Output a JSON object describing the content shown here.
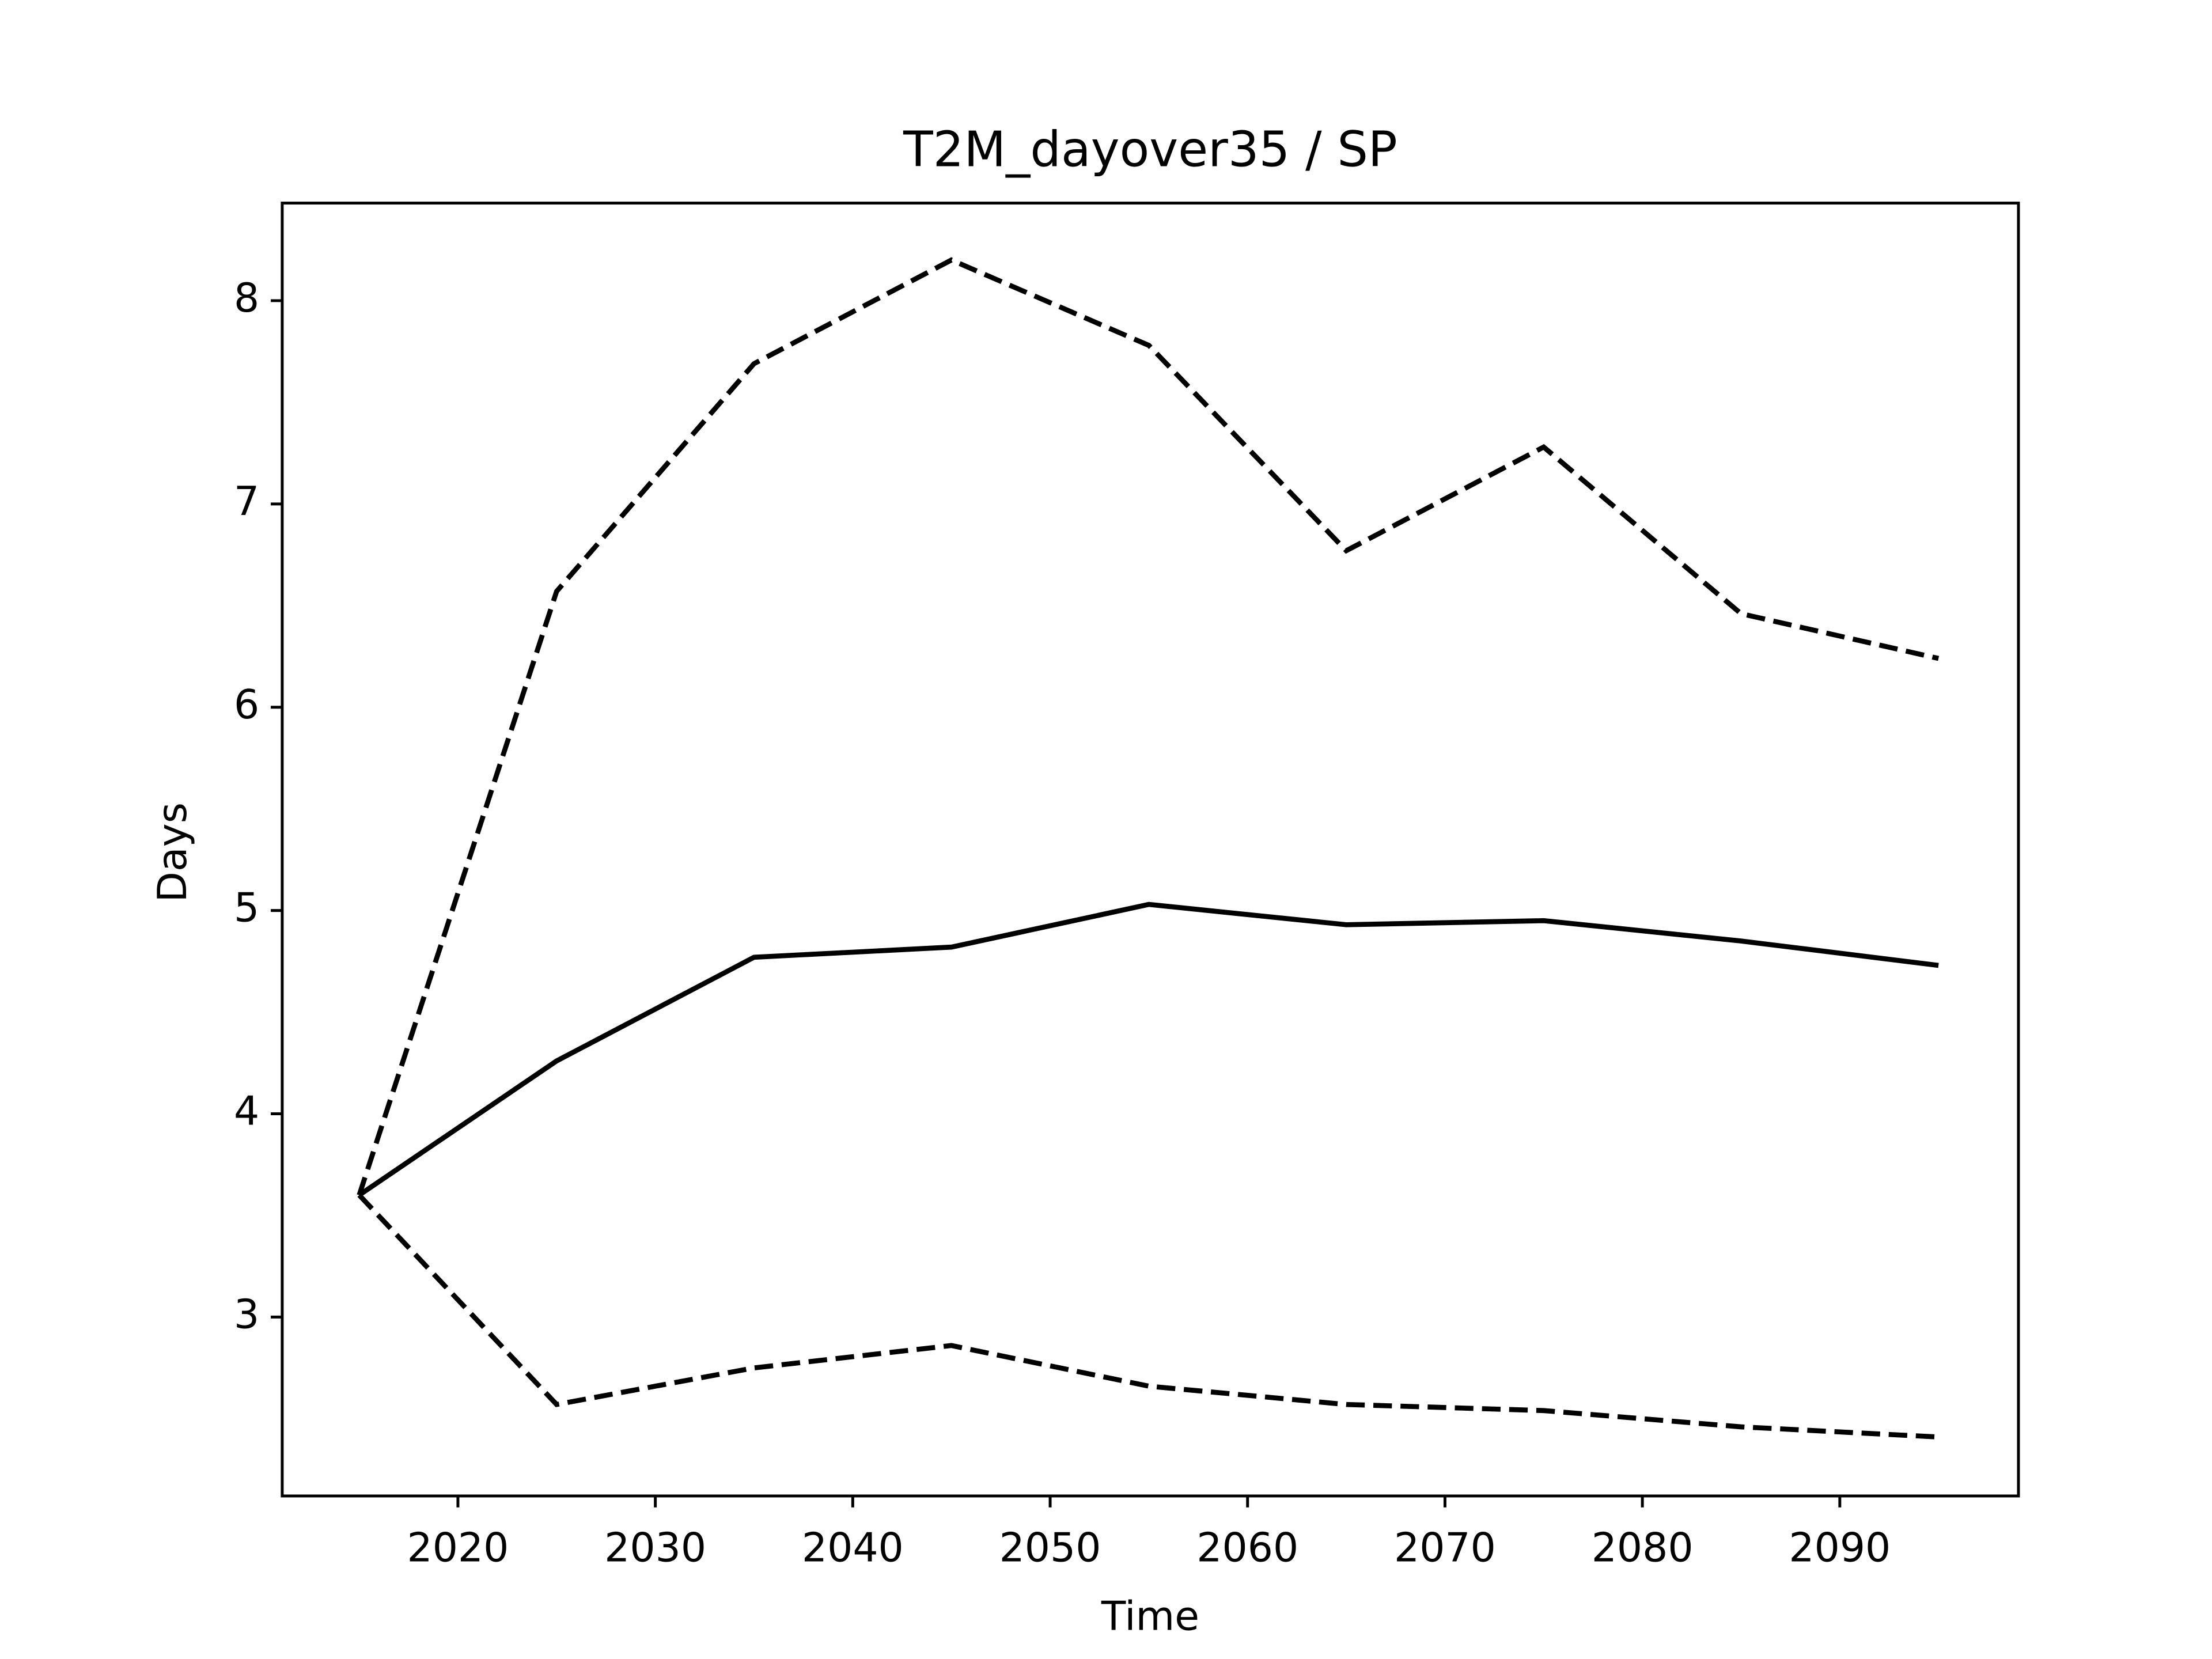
{
  "chart_data": {
    "type": "line",
    "title": "T2M_dayover35 / SP",
    "x_label": "Time",
    "y_label": "Days",
    "x": [
      2015,
      2025,
      2035,
      2045,
      2055,
      2065,
      2075,
      2085,
      2095
    ],
    "series": [
      {
        "color": "#000000",
        "dashed": false,
        "values": [
          3.6,
          4.26,
          4.77,
          4.82,
          5.03,
          4.93,
          4.95,
          4.85,
          4.73
        ]
      },
      {
        "color": "#000000",
        "dashed": true,
        "values": [
          3.6,
          6.57,
          7.69,
          8.2,
          7.78,
          6.77,
          7.28,
          6.46,
          6.24
        ]
      },
      {
        "color": "#000000",
        "dashed": true,
        "values": [
          3.6,
          2.57,
          2.75,
          2.86,
          2.66,
          2.57,
          2.54,
          2.46,
          2.41
        ]
      }
    ],
    "xlim": [
      2011.1,
      2099.05
    ],
    "ylim": [
      2.12,
      8.48
    ],
    "xticks": [
      2020,
      2030,
      2040,
      2050,
      2060,
      2070,
      2080,
      2090
    ],
    "yticks": [
      3,
      4,
      5,
      6,
      7,
      8
    ]
  }
}
